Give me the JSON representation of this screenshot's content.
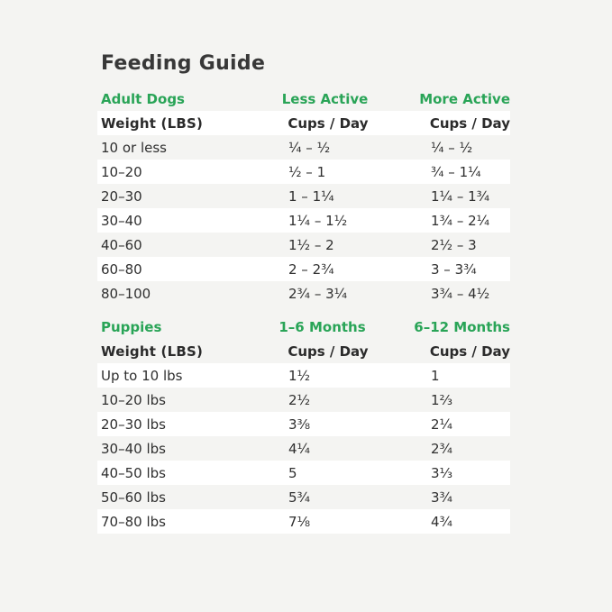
{
  "page": {
    "title": "Feeding Guide",
    "background_color": "#f4f4f2",
    "stripe_color": "#ffffff",
    "accent_green": "#29a457",
    "text_color": "#2f2f2f"
  },
  "adult": {
    "section_label": "Adult Dogs",
    "col2_label": "Less Active",
    "col3_label": "More Active",
    "header": {
      "weight": "Weight (LBS)",
      "less": "Cups / Day",
      "more": "Cups / Day"
    },
    "rows": [
      {
        "weight": "10 or less",
        "less": "¼ – ½",
        "more": "¼ – ½"
      },
      {
        "weight": "10–20",
        "less": "½ – 1",
        "more": "¾ – 1¼"
      },
      {
        "weight": "20–30",
        "less": "1 – 1¼",
        "more": "1¼ – 1¾"
      },
      {
        "weight": "30–40",
        "less": "1¼ – 1½",
        "more": "1¾ – 2¼"
      },
      {
        "weight": "40–60",
        "less": "1½ – 2",
        "more": "2½ – 3"
      },
      {
        "weight": "60–80",
        "less": "2 – 2¾",
        "more": "3 – 3¾"
      },
      {
        "weight": "80–100",
        "less": "2¾ – 3¼",
        "more": "3¾ – 4½"
      }
    ]
  },
  "puppies": {
    "section_label": "Puppies",
    "col2_label": "1–6 Months",
    "col3_label": "6–12 Months",
    "header": {
      "weight": "Weight (LBS)",
      "m16": "Cups / Day",
      "m612": "Cups / Day"
    },
    "rows": [
      {
        "weight": "Up to 10 lbs",
        "m16": "1½",
        "m612": "1"
      },
      {
        "weight": "10–20 lbs",
        "m16": "2½",
        "m612": "1⅔"
      },
      {
        "weight": "20–30 lbs",
        "m16": "3⅜",
        "m612": "2¼"
      },
      {
        "weight": "30–40 lbs",
        "m16": "4¼",
        "m612": "2¾"
      },
      {
        "weight": "40–50 lbs",
        "m16": "5",
        "m612": "3⅓"
      },
      {
        "weight": "50–60 lbs",
        "m16": "5¾",
        "m612": "3¾"
      },
      {
        "weight": "70–80 lbs",
        "m16": "7⅛",
        "m612": "4¾"
      }
    ]
  },
  "chart_data": [
    {
      "type": "table",
      "title": "Adult Dogs",
      "columns": [
        "Weight (LBS)",
        "Less Active – Cups / Day",
        "More Active – Cups / Day"
      ],
      "rows": [
        [
          "10 or less",
          "¼ – ½",
          "¼ – ½"
        ],
        [
          "10–20",
          "½ – 1",
          "¾ – 1¼"
        ],
        [
          "20–30",
          "1 – 1¼",
          "1¼ – 1¾"
        ],
        [
          "30–40",
          "1¼ – 1½",
          "1¾ – 2¼"
        ],
        [
          "40–60",
          "1½ – 2",
          "2½ – 3"
        ],
        [
          "60–80",
          "2 – 2¾",
          "3 – 3¾"
        ],
        [
          "80–100",
          "2¾ – 3¼",
          "3¾ – 4½"
        ]
      ]
    },
    {
      "type": "table",
      "title": "Puppies",
      "columns": [
        "Weight (LBS)",
        "1–6 Months – Cups / Day",
        "6–12 Months – Cups / Day"
      ],
      "rows": [
        [
          "Up to 10 lbs",
          "1½",
          "1"
        ],
        [
          "10–20 lbs",
          "2½",
          "1⅔"
        ],
        [
          "20–30 lbs",
          "3⅜",
          "2¼"
        ],
        [
          "30–40 lbs",
          "4¼",
          "2¾"
        ],
        [
          "40–50 lbs",
          "5",
          "3⅓"
        ],
        [
          "50–60 lbs",
          "5¾",
          "3¾"
        ],
        [
          "70–80 lbs",
          "7⅛",
          "4¾"
        ]
      ]
    }
  ]
}
